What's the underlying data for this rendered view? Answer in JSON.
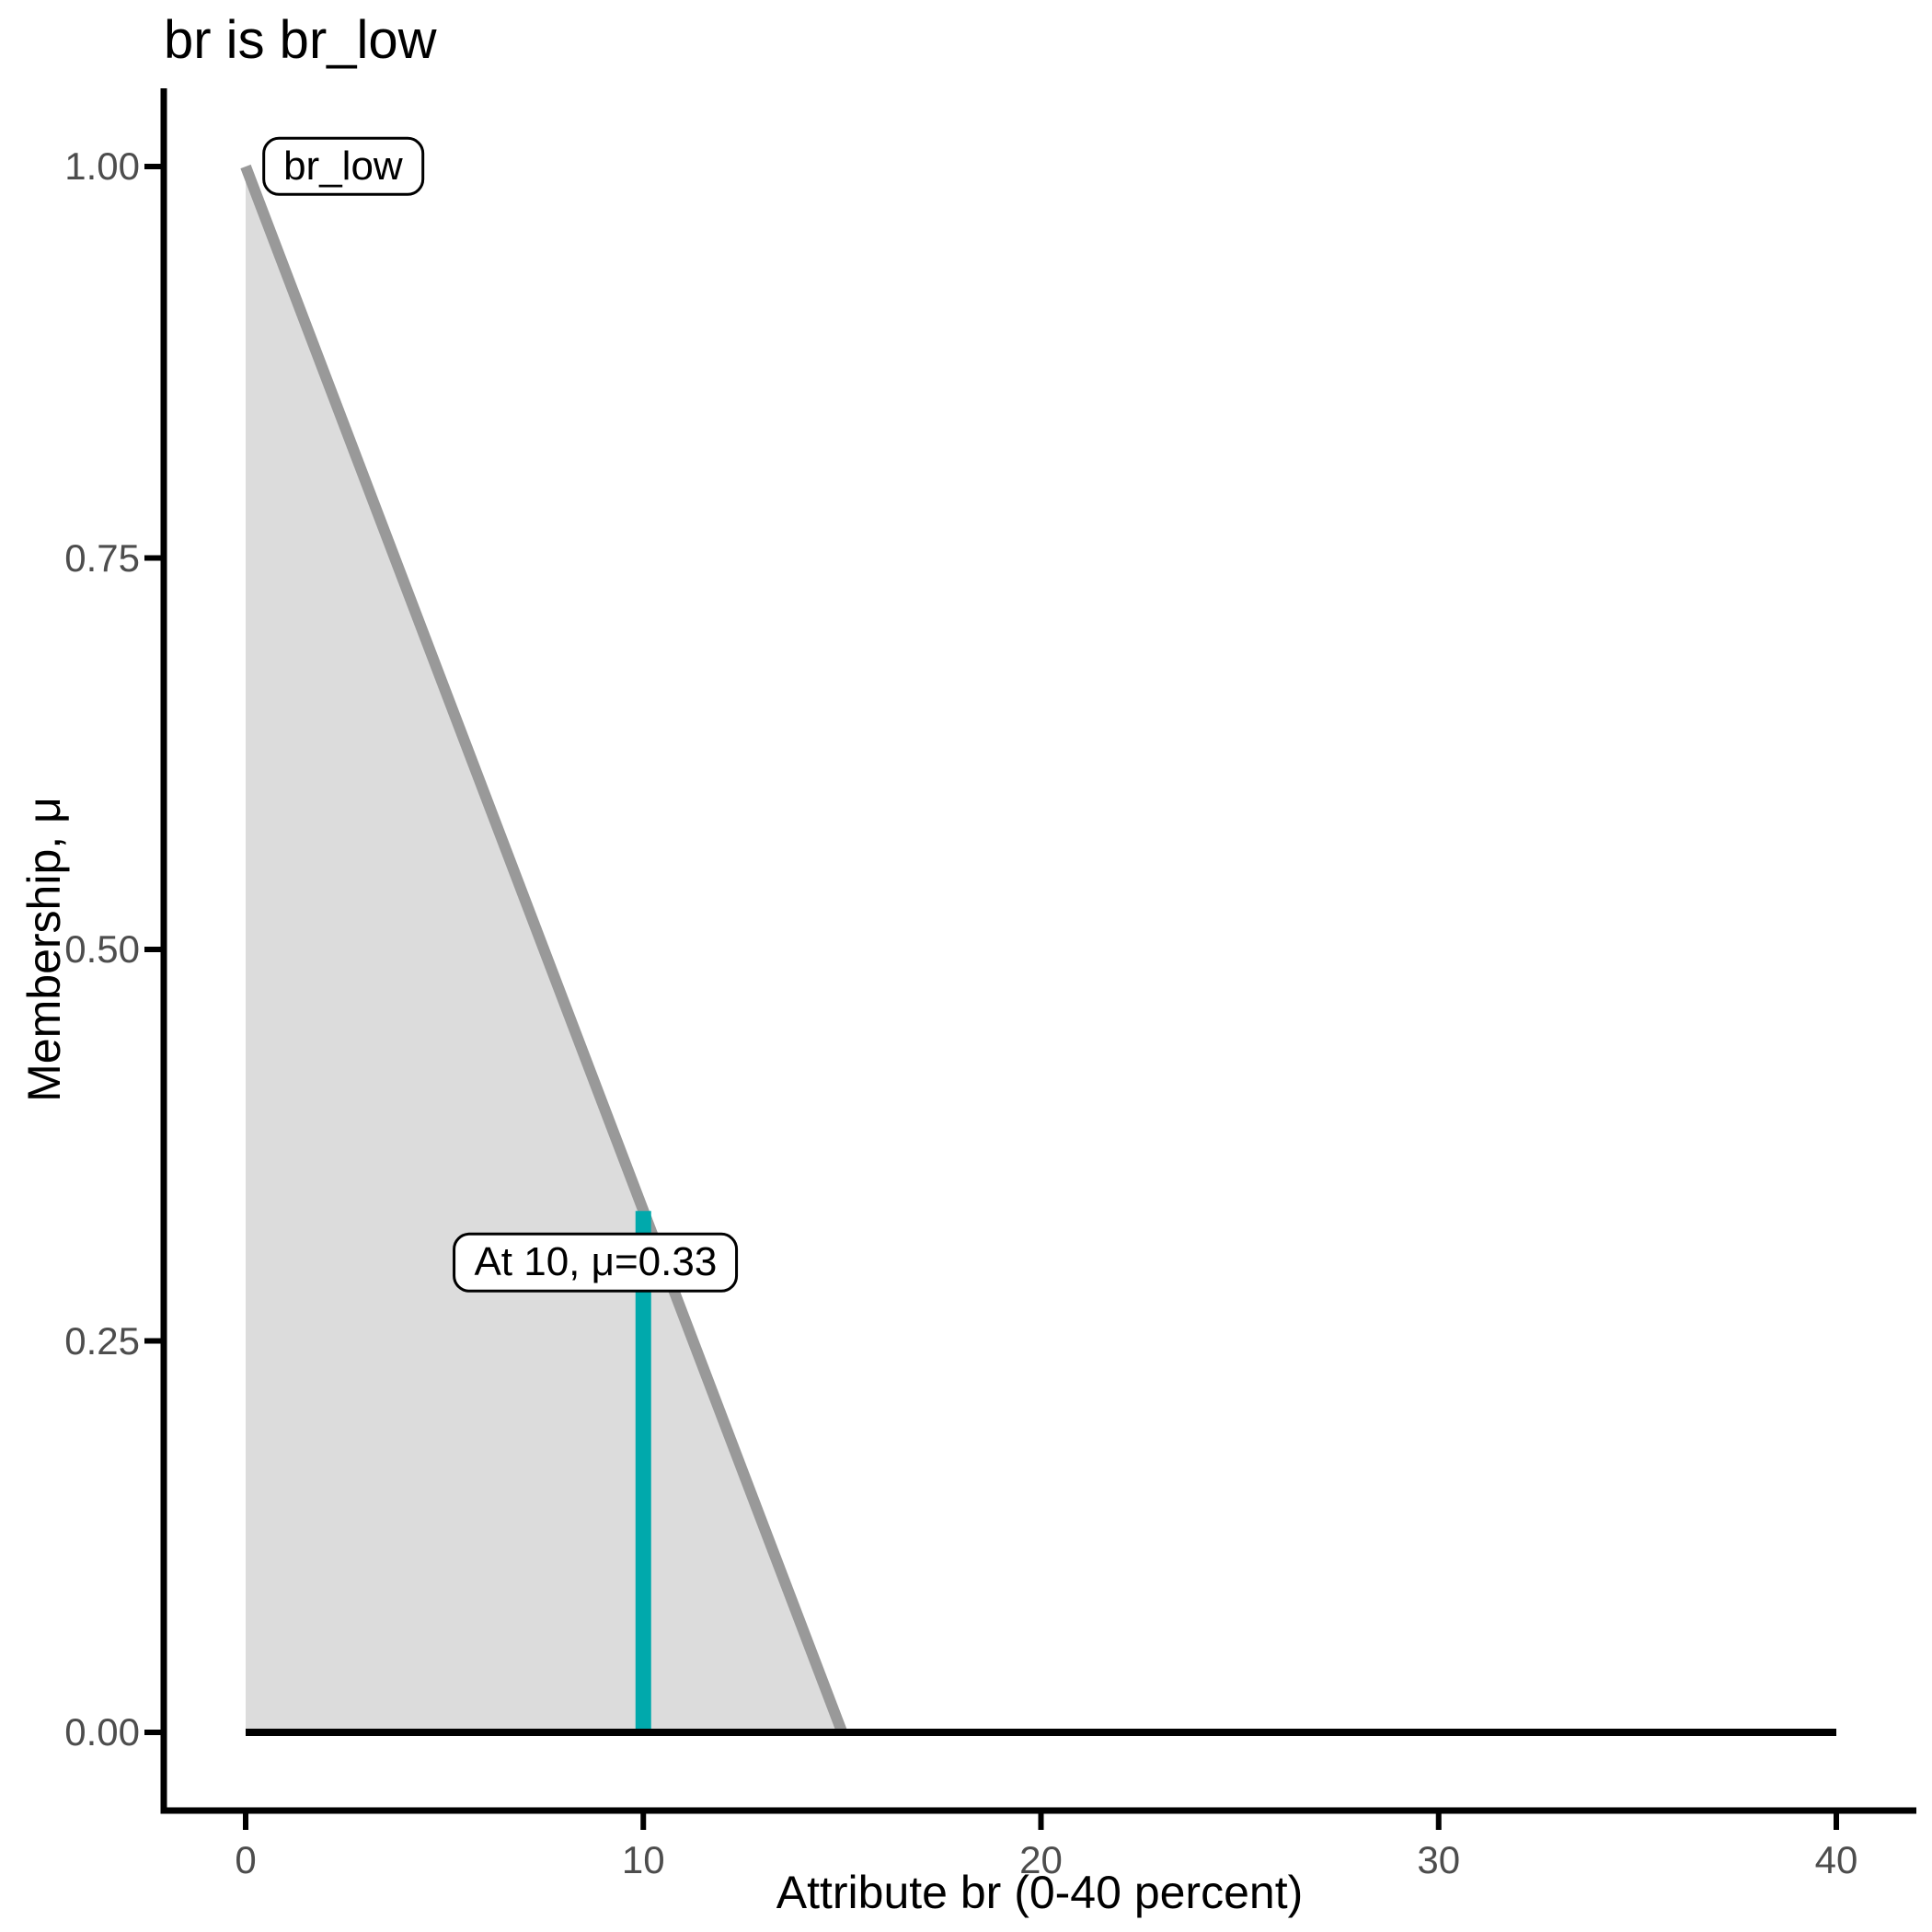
{
  "page": {
    "background": "#FFFFFF"
  },
  "chart_data": {
    "type": "area",
    "title": "br is br_low",
    "xlabel": "Attribute br (0-40 percent)",
    "ylabel": "Membership, μ",
    "xlim": [
      0,
      40
    ],
    "ylim": [
      0,
      1
    ],
    "x_ticks": [
      "0",
      "10",
      "20",
      "30",
      "40"
    ],
    "x_tick_values": [
      0,
      10,
      20,
      30,
      40
    ],
    "y_ticks": [
      "0.00",
      "0.25",
      "0.50",
      "0.75",
      "1.00"
    ],
    "y_tick_values": [
      0,
      0.25,
      0.5,
      0.75,
      1
    ],
    "grid": "off",
    "legend": "none",
    "membership_function": {
      "name": "br_low",
      "line_x": [
        0,
        15
      ],
      "line_y": [
        1,
        0
      ],
      "area_points": [
        [
          0,
          1
        ],
        [
          15,
          0
        ],
        [
          0,
          0
        ]
      ],
      "line_color": "#999999",
      "fill_color": "#DCDCDC"
    },
    "baseline": {
      "x": [
        0,
        40
      ],
      "y": [
        0,
        0
      ],
      "color": "#000000"
    },
    "evaluation_marker": {
      "x": 10,
      "mu": 0.33,
      "y_span": [
        0,
        0.333
      ],
      "color": "#00A9AC"
    },
    "annotations": [
      {
        "text": "br_low",
        "x": 2.45,
        "y": 1.0
      },
      {
        "text": "At 10, μ=0.33",
        "x": 8.8,
        "y": 0.3
      }
    ],
    "axis_color": "#000000",
    "tick_label_color": "#4D4D4D"
  }
}
